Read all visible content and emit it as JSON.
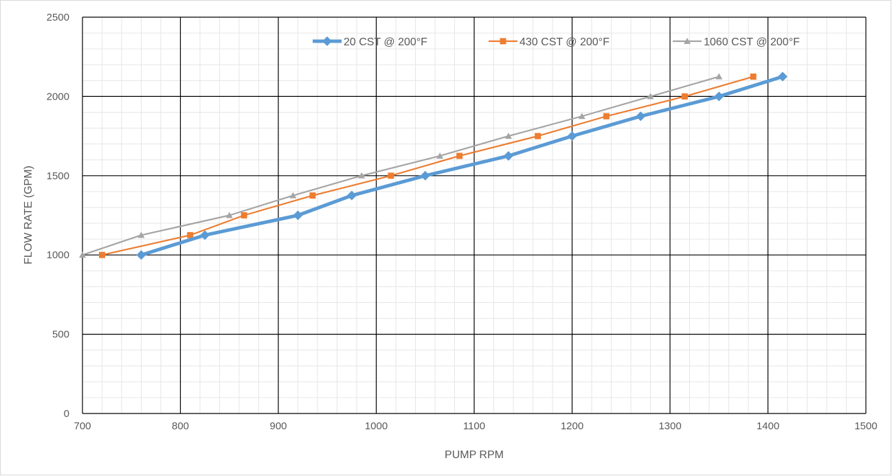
{
  "chart_data": {
    "type": "line",
    "xlabel": "PUMP RPM",
    "ylabel": "FLOW RATE (GPM)",
    "xlim": [
      700,
      1500
    ],
    "ylim": [
      0,
      2500
    ],
    "x_ticks": [
      "700",
      "800",
      "900",
      "1000",
      "1100",
      "1200",
      "1300",
      "1400",
      "1500"
    ],
    "y_ticks": [
      "0",
      "500",
      "1000",
      "1500",
      "2000",
      "2500"
    ],
    "grid": "major and minor",
    "legend_position": "top",
    "series": [
      {
        "name": "20 CST @ 200°F",
        "color": "#5B9BD5",
        "marker": "diamond",
        "points": [
          [
            760,
            1000
          ],
          [
            825,
            1125
          ],
          [
            920,
            1250
          ],
          [
            975,
            1375
          ],
          [
            1050,
            1500
          ],
          [
            1135,
            1625
          ],
          [
            1200,
            1750
          ],
          [
            1270,
            1875
          ],
          [
            1350,
            2000
          ],
          [
            1415,
            2125
          ]
        ]
      },
      {
        "name": "430 CST @ 200°F",
        "color": "#ED7D31",
        "marker": "square",
        "points": [
          [
            720,
            1000
          ],
          [
            810,
            1125
          ],
          [
            865,
            1250
          ],
          [
            935,
            1375
          ],
          [
            1015,
            1500
          ],
          [
            1085,
            1625
          ],
          [
            1165,
            1750
          ],
          [
            1235,
            1875
          ],
          [
            1315,
            2000
          ],
          [
            1385,
            2125
          ]
        ]
      },
      {
        "name": "1060 CST @ 200°F",
        "color": "#A5A5A5",
        "marker": "triangle",
        "points": [
          [
            700,
            1000
          ],
          [
            760,
            1125
          ],
          [
            850,
            1250
          ],
          [
            915,
            1375
          ],
          [
            985,
            1500
          ],
          [
            1065,
            1625
          ],
          [
            1135,
            1750
          ],
          [
            1210,
            1875
          ],
          [
            1280,
            2000
          ],
          [
            1350,
            2125
          ]
        ]
      }
    ]
  }
}
